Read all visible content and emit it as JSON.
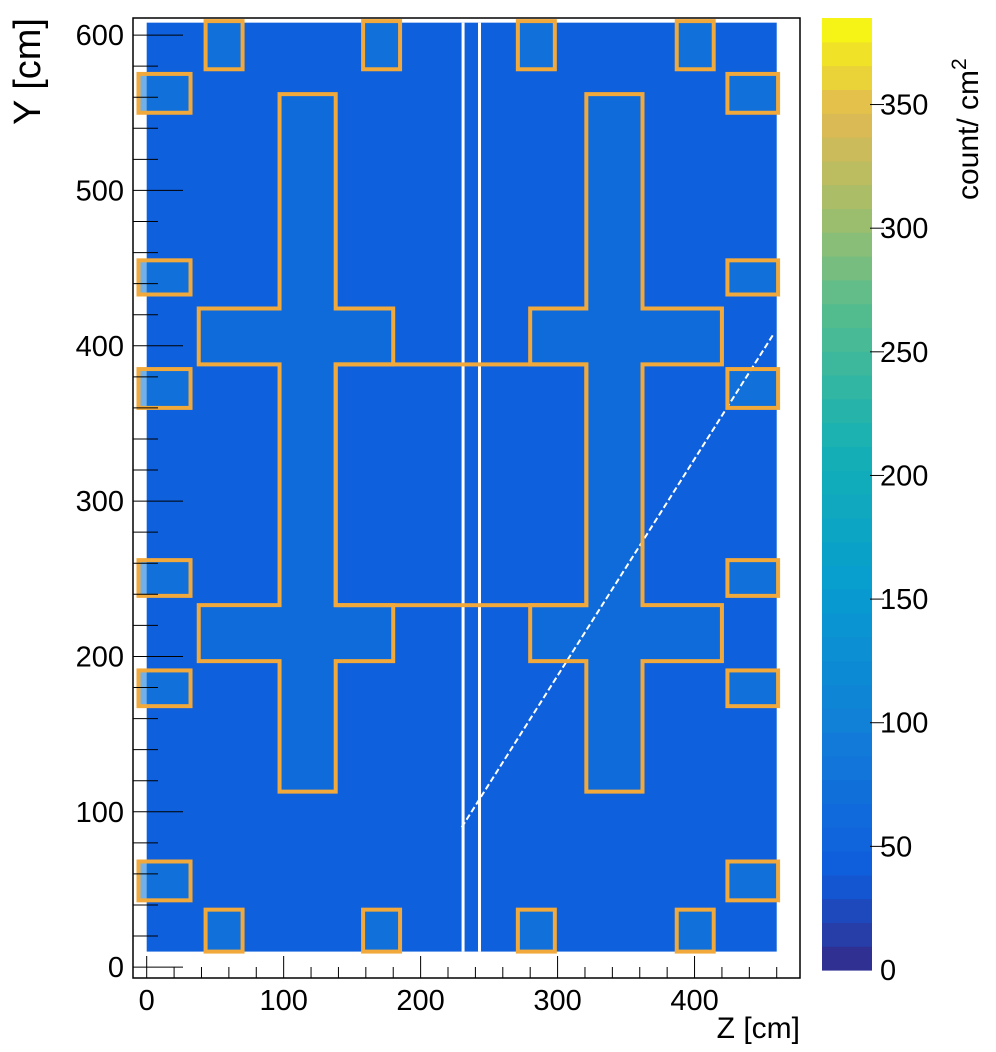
{
  "chart_data": {
    "type": "heatmap",
    "title": "",
    "xlabel": "Z [cm]",
    "ylabel": "Y [cm]",
    "zlabel": "count/ cm",
    "zlabel_superscript": "2",
    "xlim": [
      -10,
      477
    ],
    "ylim": [
      -7,
      611
    ],
    "zlim": [
      0,
      385
    ],
    "x_ticks": [
      0,
      100,
      200,
      300,
      400
    ],
    "y_ticks": [
      0,
      100,
      200,
      300,
      400,
      500,
      600
    ],
    "z_ticks": [
      0,
      50,
      100,
      150,
      200,
      250,
      300,
      350
    ],
    "colormap": "kBird",
    "data_extent": {
      "x": [
        0,
        460
      ],
      "y": [
        10,
        608
      ]
    },
    "background_level": 45,
    "gap_columns_z": [
      231,
      243
    ],
    "diagonal_feature": {
      "from": [
        230,
        90
      ],
      "to": [
        458,
        408
      ]
    },
    "overlay_color": "#f2a93b",
    "plus_regions": [
      {
        "outline": [
          [
            97,
            113
          ],
          [
            138,
            113
          ],
          [
            138,
            197
          ],
          [
            180,
            197
          ],
          [
            180,
            233
          ],
          [
            138,
            233
          ],
          [
            138,
            388
          ],
          [
            180,
            388
          ],
          [
            180,
            424
          ],
          [
            138,
            424
          ],
          [
            138,
            562
          ],
          [
            97,
            562
          ],
          [
            97,
            424
          ],
          [
            38,
            424
          ],
          [
            38,
            388
          ],
          [
            97,
            388
          ],
          [
            97,
            233
          ],
          [
            38,
            233
          ],
          [
            38,
            197
          ],
          [
            97,
            197
          ]
        ]
      },
      {
        "outline": [
          [
            321,
            113
          ],
          [
            362,
            113
          ],
          [
            362,
            197
          ],
          [
            420,
            197
          ],
          [
            420,
            233
          ],
          [
            362,
            233
          ],
          [
            362,
            388
          ],
          [
            420,
            388
          ],
          [
            420,
            424
          ],
          [
            362,
            424
          ],
          [
            362,
            562
          ],
          [
            321,
            562
          ],
          [
            321,
            424
          ],
          [
            280,
            424
          ],
          [
            280,
            388
          ],
          [
            321,
            388
          ],
          [
            321,
            233
          ],
          [
            280,
            233
          ],
          [
            280,
            197
          ],
          [
            321,
            197
          ]
        ]
      }
    ],
    "boxes": [
      {
        "z": [
          43,
          70
        ],
        "y": [
          578,
          609
        ]
      },
      {
        "z": [
          158,
          185
        ],
        "y": [
          578,
          609
        ]
      },
      {
        "z": [
          271,
          298
        ],
        "y": [
          578,
          609
        ]
      },
      {
        "z": [
          387,
          414
        ],
        "y": [
          578,
          609
        ]
      },
      {
        "z": [
          43,
          70
        ],
        "y": [
          10,
          37
        ]
      },
      {
        "z": [
          158,
          185
        ],
        "y": [
          10,
          37
        ]
      },
      {
        "z": [
          271,
          298
        ],
        "y": [
          10,
          37
        ]
      },
      {
        "z": [
          387,
          414
        ],
        "y": [
          10,
          37
        ]
      },
      {
        "z": [
          -6,
          32
        ],
        "y": [
          550,
          575
        ]
      },
      {
        "z": [
          -6,
          32
        ],
        "y": [
          433,
          455
        ]
      },
      {
        "z": [
          -6,
          32
        ],
        "y": [
          360,
          385
        ]
      },
      {
        "z": [
          -6,
          32
        ],
        "y": [
          239,
          262
        ]
      },
      {
        "z": [
          -6,
          32
        ],
        "y": [
          168,
          191
        ]
      },
      {
        "z": [
          -6,
          32
        ],
        "y": [
          43,
          68
        ]
      },
      {
        "z": [
          424,
          461
        ],
        "y": [
          550,
          575
        ]
      },
      {
        "z": [
          424,
          461
        ],
        "y": [
          433,
          455
        ]
      },
      {
        "z": [
          424,
          461
        ],
        "y": [
          360,
          385
        ]
      },
      {
        "z": [
          424,
          461
        ],
        "y": [
          239,
          262
        ]
      },
      {
        "z": [
          424,
          461
        ],
        "y": [
          168,
          191
        ]
      },
      {
        "z": [
          424,
          461
        ],
        "y": [
          43,
          68
        ]
      }
    ],
    "rectangles": [
      {
        "z": [
          138,
          321
        ],
        "y": [
          233,
          388
        ]
      }
    ]
  }
}
